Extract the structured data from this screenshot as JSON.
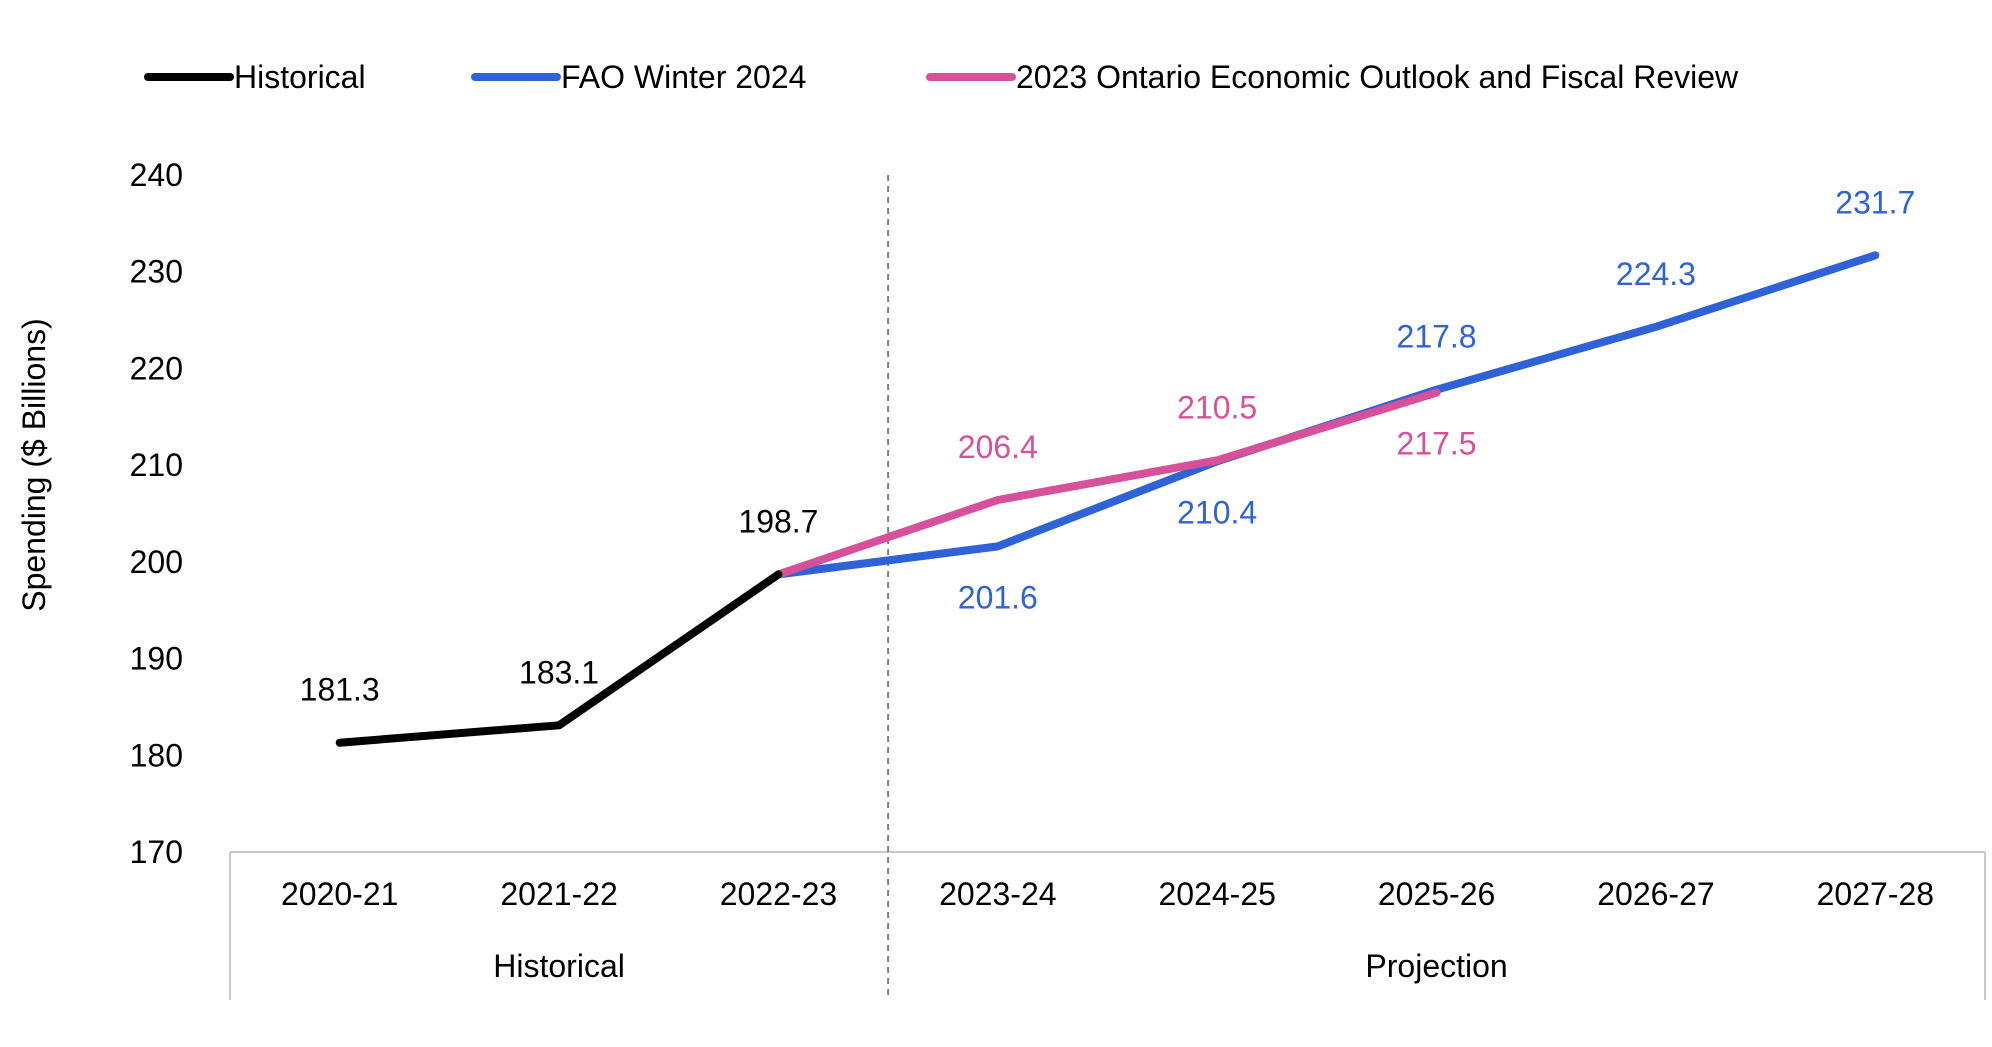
{
  "chart_data": {
    "type": "line",
    "title": "",
    "xlabel": "",
    "ylabel": "Spending ($ Billions)",
    "ylim": [
      170,
      240
    ],
    "yticks": [
      170,
      180,
      190,
      200,
      210,
      220,
      230,
      240
    ],
    "grid": false,
    "legend_position": "top",
    "categories": [
      "2020-21",
      "2021-22",
      "2022-23",
      "2023-24",
      "2024-25",
      "2025-26",
      "2026-27",
      "2027-28"
    ],
    "groups": [
      {
        "label": "Historical",
        "start": 0,
        "end": 2
      },
      {
        "label": "Projection",
        "start": 3,
        "end": 7
      }
    ],
    "series": [
      {
        "name": "Historical",
        "color": "#000000",
        "values": [
          181.3,
          183.1,
          198.7,
          null,
          null,
          null,
          null,
          null
        ],
        "labels": [
          "181.3",
          "183.1",
          "198.7",
          null,
          null,
          null,
          null,
          null
        ]
      },
      {
        "name": "FAO Winter 2024",
        "color": "#2E62D6",
        "values": [
          null,
          null,
          198.7,
          201.6,
          210.4,
          217.8,
          224.3,
          231.7
        ],
        "labels": [
          null,
          null,
          null,
          "201.6",
          "210.4",
          "217.8",
          "224.3",
          "231.7"
        ]
      },
      {
        "name": "2023 Ontario Economic Outlook and Fiscal Review",
        "color": "#D6509A",
        "values": [
          null,
          null,
          198.7,
          206.4,
          210.5,
          217.5,
          null,
          null
        ],
        "labels": [
          null,
          null,
          null,
          "206.4",
          "210.5",
          "217.5",
          null,
          null
        ]
      }
    ]
  }
}
